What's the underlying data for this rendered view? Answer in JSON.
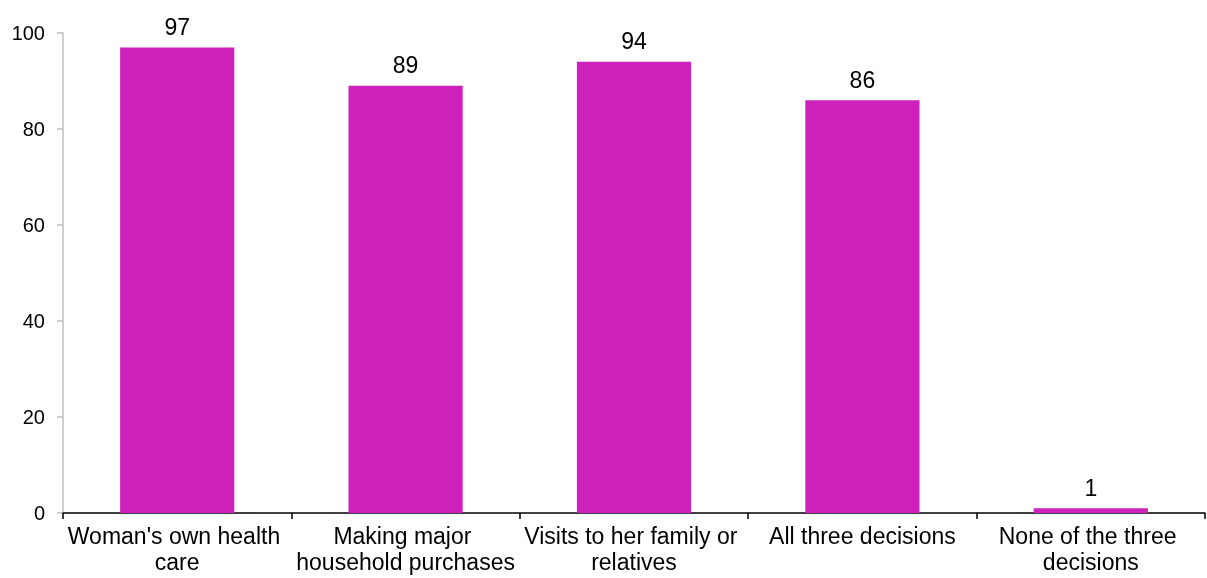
{
  "chart_data": {
    "type": "bar",
    "categories": [
      "Woman's own health care",
      "Making major household purchases",
      "Visits to her family or relatives",
      "All three decisions",
      "None of the three decisions"
    ],
    "values": [
      97,
      89,
      94,
      86,
      1
    ],
    "color": "#cc22bb",
    "ylim": [
      0,
      100
    ],
    "yticks": [
      0,
      20,
      40,
      60,
      80,
      100
    ],
    "data_labels": true
  }
}
